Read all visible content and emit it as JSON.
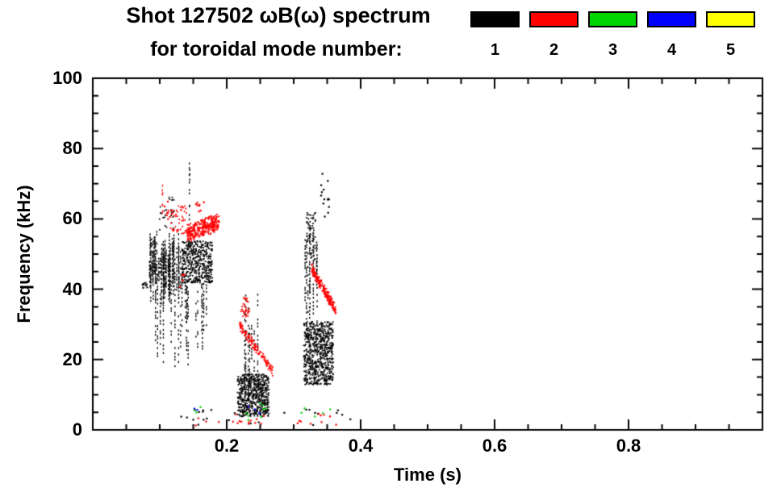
{
  "chart_data": {
    "type": "scatter",
    "title": "Shot 127502 ωB(ω) spectrum",
    "subtitle": "for toroidal mode number:",
    "xlabel": "Time (s)",
    "ylabel": "Frequency (kHz)",
    "xlim": [
      0.0,
      1.0
    ],
    "ylim": [
      0,
      100
    ],
    "xticks": [
      0.2,
      0.4,
      0.6,
      0.8
    ],
    "xtick_labels": [
      "0.2",
      "0.4",
      "0.6",
      "0.8"
    ],
    "yticks": [
      0,
      20,
      40,
      60,
      80,
      100
    ],
    "ytick_labels": [
      "100",
      "80",
      "60",
      "40",
      "20",
      "0"
    ],
    "x_minor_step": 0.05,
    "y_minor_step": 5,
    "grid": false,
    "legend_position": "top-right",
    "legend": [
      {
        "label": "1",
        "color": "#000000"
      },
      {
        "label": "2",
        "color": "#ff0000"
      },
      {
        "label": "3",
        "color": "#00d400"
      },
      {
        "label": "4",
        "color": "#0000ff"
      },
      {
        "label": "5",
        "color": "#ffff00"
      }
    ],
    "series": [
      {
        "name": "mode-1",
        "color": "#000000",
        "clusters": [
          {
            "kind": "specks",
            "t": [
              0.072,
              0.085
            ],
            "f": [
              40,
              44
            ],
            "n": 9
          },
          {
            "kind": "vlines",
            "t": [
              0.083,
              0.128
            ],
            "f0": [
              36,
              46
            ],
            "f1": [
              48,
              57
            ],
            "n": 46,
            "gap": 0.2
          },
          {
            "kind": "vlines",
            "t": [
              0.092,
              0.15
            ],
            "f0": [
              17,
              26
            ],
            "f1": [
              42,
              52
            ],
            "n": 11,
            "gap": 0.45
          },
          {
            "kind": "blob",
            "t": [
              0.098,
              0.122
            ],
            "f": [
              57,
              67
            ],
            "n": 26
          },
          {
            "kind": "vlines",
            "t": [
              0.143,
              0.15
            ],
            "f0": [
              58,
              62
            ],
            "f1": [
              74,
              79
            ],
            "n": 2,
            "gap": 0.5
          },
          {
            "kind": "blob",
            "t": [
              0.132,
              0.178
            ],
            "f": [
              42,
              54
            ],
            "n": 430
          },
          {
            "kind": "vlines",
            "t": [
              0.13,
              0.172
            ],
            "f0": [
              20,
              32
            ],
            "f1": [
              40,
              48
            ],
            "n": 9,
            "gap": 0.5
          },
          {
            "kind": "blob",
            "t": [
              0.215,
              0.262
            ],
            "f": [
              4,
              16
            ],
            "n": 560
          },
          {
            "kind": "vlines",
            "t": [
              0.218,
              0.248
            ],
            "f0": [
              8,
              15
            ],
            "f1": [
              28,
              41
            ],
            "n": 7,
            "gap": 0.4
          },
          {
            "kind": "blob",
            "t": [
              0.314,
              0.358
            ],
            "f": [
              13,
              31
            ],
            "n": 660
          },
          {
            "kind": "vlines",
            "t": [
              0.316,
              0.336
            ],
            "f0": [
              30,
              40
            ],
            "f1": [
              52,
              64
            ],
            "n": 8,
            "gap": 0.35
          },
          {
            "kind": "blob",
            "t": [
              0.318,
              0.332
            ],
            "f": [
              48,
              62
            ],
            "n": 60
          },
          {
            "kind": "specks",
            "t": [
              0.338,
              0.352
            ],
            "f": [
              58,
              74
            ],
            "n": 14
          },
          {
            "kind": "specks",
            "t": [
              0.13,
              0.4
            ],
            "f": [
              1.5,
              6
            ],
            "n": 26
          }
        ]
      },
      {
        "name": "mode-2",
        "color": "#ff0000",
        "clusters": [
          {
            "kind": "vlines",
            "t": [
              0.097,
              0.104
            ],
            "f0": [
              59,
              63
            ],
            "f1": [
              68,
              73
            ],
            "n": 2,
            "gap": 0.55
          },
          {
            "kind": "specks",
            "t": [
              0.104,
              0.118
            ],
            "f": [
              60,
              67
            ],
            "n": 10
          },
          {
            "kind": "blob",
            "t": [
              0.115,
              0.14
            ],
            "f": [
              56,
              64
            ],
            "n": 48
          },
          {
            "kind": "chirp",
            "t": [
              0.14,
              0.188
            ],
            "f": [
              56,
              59.5
            ],
            "w": 5,
            "n": 340
          },
          {
            "kind": "specks",
            "t": [
              0.15,
              0.165
            ],
            "f": [
              62,
              66
            ],
            "n": 8
          },
          {
            "kind": "specks",
            "t": [
              0.126,
              0.136
            ],
            "f": [
              40,
              45
            ],
            "n": 5
          },
          {
            "kind": "blob",
            "t": [
              0.22,
              0.233
            ],
            "f": [
              32,
              38
            ],
            "n": 36
          },
          {
            "kind": "chirp",
            "t": [
              0.218,
              0.268
            ],
            "f": [
              30,
              17
            ],
            "w": 3,
            "n": 140
          },
          {
            "kind": "chirp",
            "t": [
              0.326,
              0.362
            ],
            "f": [
              46,
              34
            ],
            "w": 3.2,
            "n": 220
          },
          {
            "kind": "specks",
            "t": [
              0.14,
              0.26
            ],
            "f": [
              1.5,
              5
            ],
            "n": 16
          },
          {
            "kind": "specks",
            "t": [
              0.295,
              0.37
            ],
            "f": [
              1.5,
              5
            ],
            "n": 10
          }
        ]
      },
      {
        "name": "mode-3",
        "color": "#00d400",
        "clusters": [
          {
            "kind": "specks",
            "t": [
              0.15,
              0.16
            ],
            "f": [
              4,
              7
            ],
            "n": 3
          },
          {
            "kind": "specks",
            "t": [
              0.222,
              0.262
            ],
            "f": [
              3,
              8
            ],
            "n": 8
          },
          {
            "kind": "specks",
            "t": [
              0.3,
              0.355
            ],
            "f": [
              3,
              7
            ],
            "n": 5
          }
        ]
      },
      {
        "name": "mode-4",
        "color": "#0000ff",
        "clusters": [
          {
            "kind": "specks",
            "t": [
              0.15,
              0.158
            ],
            "f": [
              4,
              7
            ],
            "n": 2
          },
          {
            "kind": "specks",
            "t": [
              0.228,
              0.25
            ],
            "f": [
              4,
              7
            ],
            "n": 3
          }
        ]
      },
      {
        "name": "mode-5",
        "color": "#ffff00",
        "clusters": []
      }
    ]
  }
}
